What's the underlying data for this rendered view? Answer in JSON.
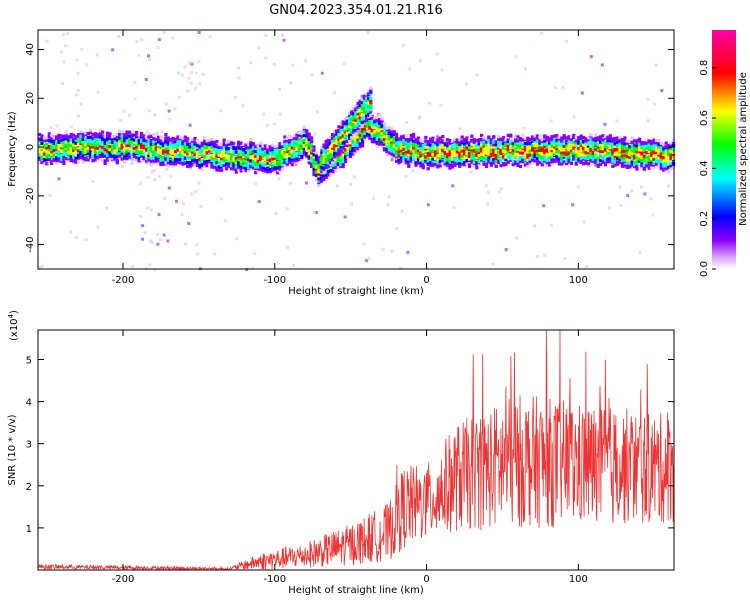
{
  "title": "GN04.2023.354.01.21.R16",
  "chart_data": [
    {
      "type": "heatmap",
      "xlabel": "Height of straight line (km)",
      "ylabel": "Frequency (Hz)",
      "xlim": [
        -256,
        163
      ],
      "ylim": [
        -50,
        48
      ],
      "xticks": [
        -200,
        -100,
        0,
        100
      ],
      "yticks": [
        -40,
        -20,
        0,
        20,
        40
      ],
      "colorbar": {
        "label": "Normalized spectral amplitude",
        "range": [
          0,
          0.95
        ],
        "ticks": [
          0.0,
          0.2,
          0.4,
          0.6,
          0.8
        ],
        "colormap": [
          "#ffffff",
          "#8a00ff",
          "#0000ff",
          "#00ffff",
          "#00ff00",
          "#ffff00",
          "#ff0000",
          "#ff00aa"
        ]
      },
      "ridge": [
        {
          "x": -256,
          "f": 0
        },
        {
          "x": -200,
          "f": 1
        },
        {
          "x": -150,
          "f": -2
        },
        {
          "x": -100,
          "f": -4
        },
        {
          "x": -80,
          "f": 3
        },
        {
          "x": -72,
          "f": -10
        },
        {
          "x": -55,
          "f": 0
        },
        {
          "x": -40,
          "f": 10
        },
        {
          "x": -30,
          "f": 6
        },
        {
          "x": -20,
          "f": 0
        },
        {
          "x": 0,
          "f": -2
        },
        {
          "x": 50,
          "f": -1
        },
        {
          "x": 100,
          "f": 0
        },
        {
          "x": 163,
          "f": -3
        }
      ],
      "branch": [
        {
          "x": -70,
          "f": -5
        },
        {
          "x": -37,
          "f": 20
        }
      ]
    },
    {
      "type": "line",
      "xlabel": "Height of straight line (km)",
      "ylabel": "SNR (10 * v/v)",
      "yunit_label": "(x10",
      "yunit_exp": "4",
      "yunit_close": ")",
      "xlim": [
        -256,
        163
      ],
      "ylim": [
        0,
        5.7
      ],
      "xticks": [
        -200,
        -100,
        0,
        100
      ],
      "yticks": [
        1,
        2,
        3,
        4,
        5
      ],
      "color": "#ee3333",
      "envelope": [
        {
          "x": -256,
          "mean": 0.08,
          "spread": 0.06
        },
        {
          "x": -130,
          "mean": 0.03,
          "spread": 0.03
        },
        {
          "x": -110,
          "mean": 0.2,
          "spread": 0.2
        },
        {
          "x": -80,
          "mean": 0.35,
          "spread": 0.3
        },
        {
          "x": -50,
          "mean": 0.6,
          "spread": 0.5
        },
        {
          "x": -25,
          "mean": 0.9,
          "spread": 0.7
        },
        {
          "x": -15,
          "mean": 1.5,
          "spread": 1.0
        },
        {
          "x": 0,
          "mean": 1.6,
          "spread": 0.9
        },
        {
          "x": 20,
          "mean": 2.2,
          "spread": 1.3
        },
        {
          "x": 60,
          "mean": 2.6,
          "spread": 1.6
        },
        {
          "x": 100,
          "mean": 2.5,
          "spread": 1.5
        },
        {
          "x": 163,
          "mean": 2.4,
          "spread": 1.3
        }
      ]
    }
  ]
}
